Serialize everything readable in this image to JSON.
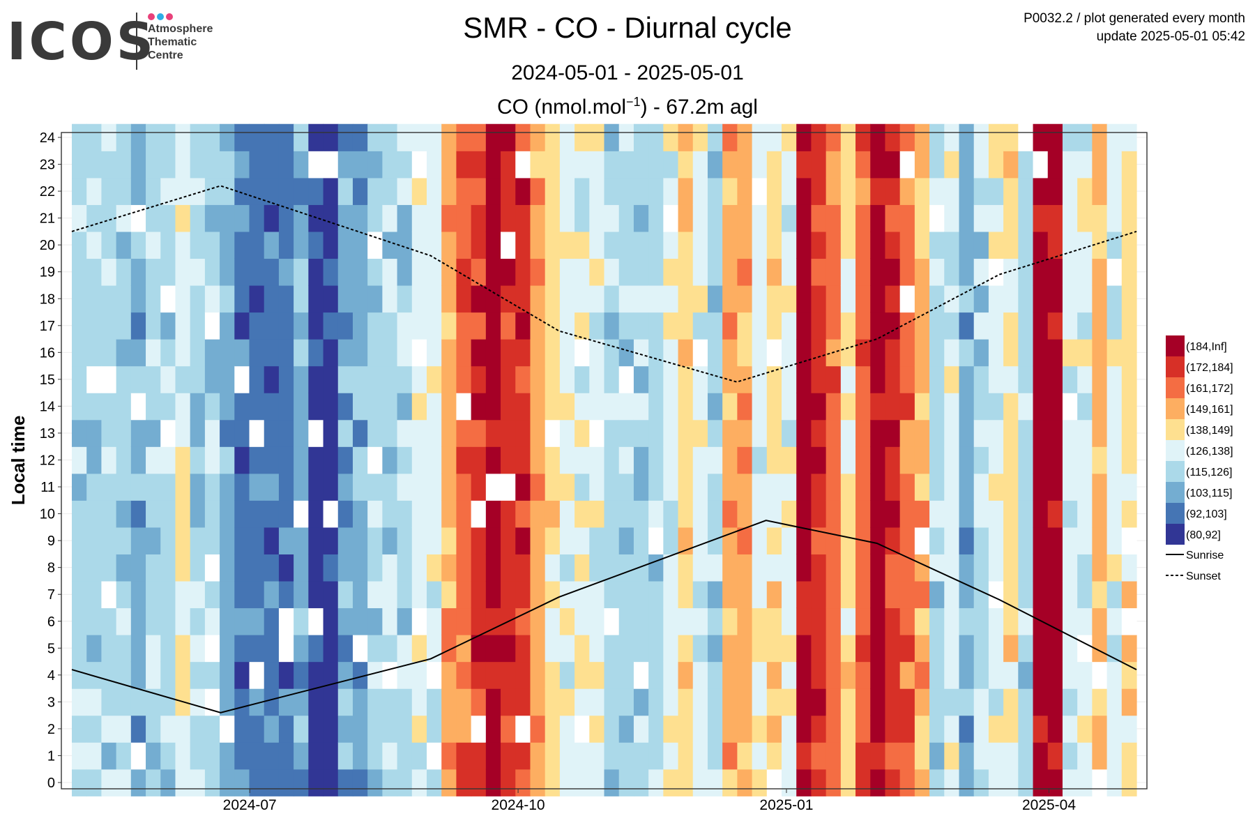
{
  "logo": {
    "wordmark": "ICOS",
    "subtitle_lines": [
      "Atmosphere",
      "Thematic",
      "Centre"
    ],
    "dot_colors": [
      "#e8417a",
      "#2eaee6",
      "#e8417a"
    ]
  },
  "header": {
    "title": "SMR - CO - Diurnal cycle",
    "date_range": "2024-05-01 - 2025-05-01",
    "variable_main": "CO (nmol.mol",
    "variable_exponent": "−1",
    "variable_tail": ") - 67.2m agl"
  },
  "meta": {
    "line1": "P0032.2 / plot generated every month",
    "line2": "update  2025-05-01 05:42"
  },
  "chart_data": {
    "type": "heatmap",
    "title": "SMR - CO - Diurnal cycle",
    "subtitle": "2024-05-01 - 2025-05-01",
    "variable": "CO (nmol.mol⁻¹) - 67.2m agl",
    "xlabel": "",
    "ylabel": "Local time",
    "xlim": [
      "2024-05-01",
      "2025-05-01"
    ],
    "ylim": [
      0,
      24
    ],
    "x_ticks": [
      {
        "date": "2024-07-01",
        "label": "2024-07"
      },
      {
        "date": "2024-10-01",
        "label": "2024-10"
      },
      {
        "date": "2025-01-01",
        "label": "2025-01"
      },
      {
        "date": "2025-04-01",
        "label": "2025-04"
      }
    ],
    "y_ticks": [
      0,
      1,
      2,
      3,
      4,
      5,
      6,
      7,
      8,
      9,
      10,
      11,
      12,
      13,
      14,
      15,
      16,
      17,
      18,
      19,
      20,
      21,
      22,
      23,
      24
    ],
    "grid": true,
    "legend_position": "right",
    "bins": [
      {
        "label": "(184,Inf]",
        "color": "#a50026"
      },
      {
        "label": "(172,184]",
        "color": "#d73027"
      },
      {
        "label": "(161,172]",
        "color": "#f46d43"
      },
      {
        "label": "(149,161]",
        "color": "#fdae61"
      },
      {
        "label": "(138,149]",
        "color": "#fee090"
      },
      {
        "label": "(126,138]",
        "color": "#e0f3f8"
      },
      {
        "label": "(115,126]",
        "color": "#abd9e9"
      },
      {
        "label": "(103,115]",
        "color": "#74add1"
      },
      {
        "label": "(92,103]",
        "color": "#4575b4"
      },
      {
        "label": "(80,92]",
        "color": "#313695"
      }
    ],
    "weekly_bin_index": [
      6,
      6,
      6,
      6,
      7,
      6,
      6,
      5,
      6,
      6,
      7,
      8,
      8,
      8,
      8,
      7,
      9,
      9,
      7,
      7,
      6,
      6,
      6,
      5,
      5,
      3,
      2,
      1,
      0,
      1,
      1,
      3,
      4,
      5,
      5,
      5,
      6,
      6,
      6,
      6,
      5,
      4,
      5,
      6,
      3,
      3,
      5,
      4,
      5,
      0,
      1,
      2,
      4,
      2,
      0,
      1,
      2,
      3,
      6,
      5,
      7,
      6,
      5,
      4,
      6,
      0,
      0,
      5,
      5,
      3,
      5,
      4
    ],
    "lines": [
      {
        "name": "Sunrise",
        "style": "solid",
        "color": "#000000",
        "x": [
          "2024-05-01",
          "2024-06-21",
          "2024-09-01",
          "2024-10-15",
          "2024-12-25",
          "2025-02-01",
          "2025-03-15",
          "2025-05-01"
        ],
        "y": [
          4.2,
          2.6,
          4.6,
          6.9,
          9.75,
          8.9,
          6.8,
          4.2
        ]
      },
      {
        "name": "Sunset",
        "style": "dashed",
        "color": "#000000",
        "x": [
          "2024-05-01",
          "2024-06-21",
          "2024-09-01",
          "2024-10-15",
          "2024-12-15",
          "2025-02-01",
          "2025-03-15",
          "2025-05-01"
        ],
        "y": [
          20.5,
          22.2,
          19.6,
          16.8,
          14.9,
          16.5,
          18.9,
          20.5
        ]
      }
    ]
  }
}
